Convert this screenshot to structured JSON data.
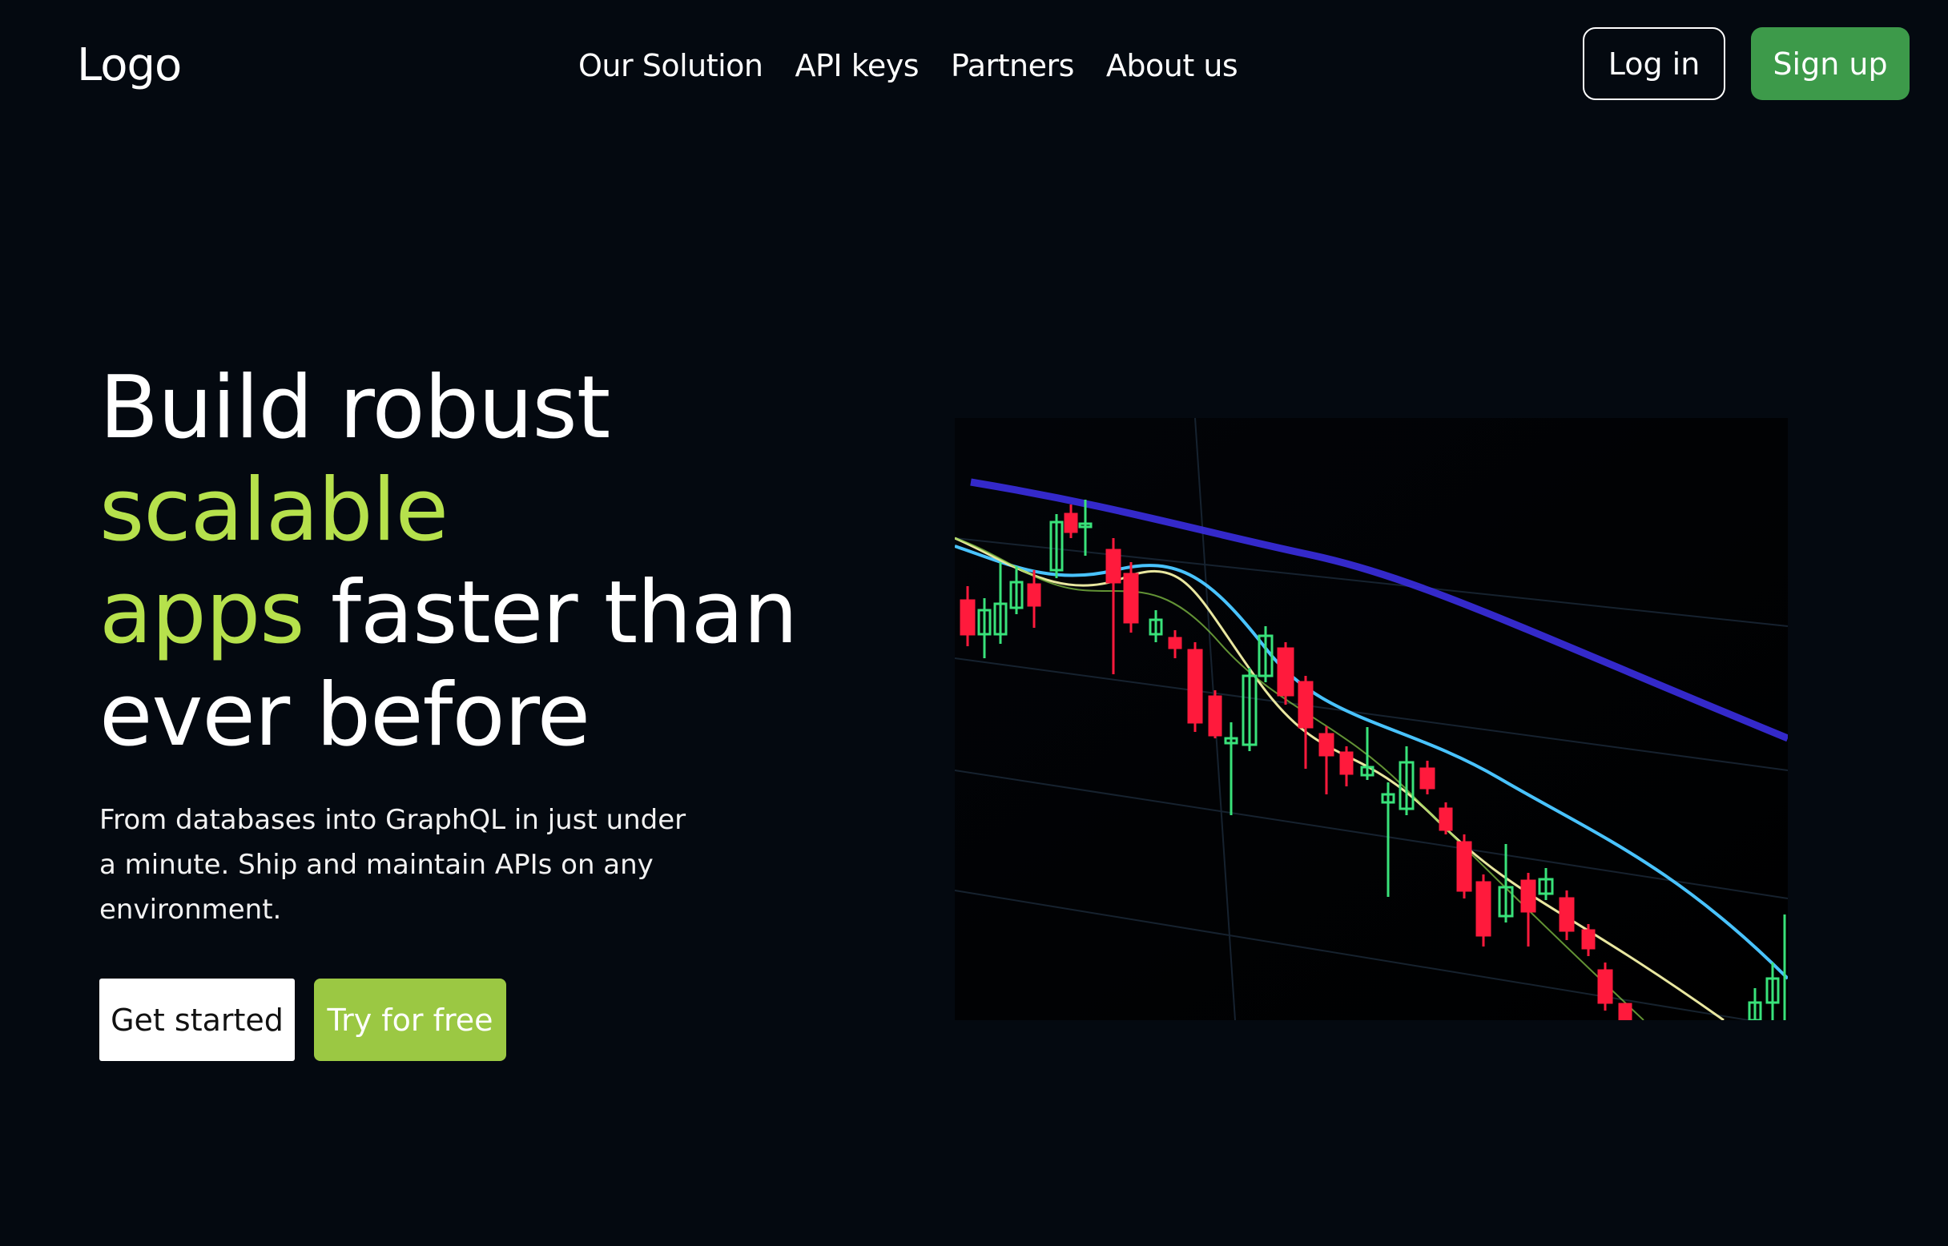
{
  "header": {
    "logo": "Logo",
    "nav": [
      "Our Solution",
      "API keys",
      "Partners",
      "About us"
    ],
    "login_label": "Log in",
    "signup_label": "Sign up"
  },
  "hero": {
    "title_1": "Build robust",
    "title_2_accent": "scalable",
    "title_3_accent": "apps",
    "title_3_rest": " faster than",
    "title_4": "ever before",
    "subtitle": "From databases into GraphQL in just under a minute. Ship and maintain APIs on any environment.",
    "get_started_label": "Get started",
    "try_free_label": "Try for free"
  },
  "image": {
    "description_icon": "candlestick-chart-photo"
  },
  "colors": {
    "background": "#040910",
    "accent": "#b6e14c",
    "signup": "#3d9a4a",
    "try_free": "#9bc843",
    "candle_up": "#39e27a",
    "candle_down": "#ff1a3c"
  }
}
